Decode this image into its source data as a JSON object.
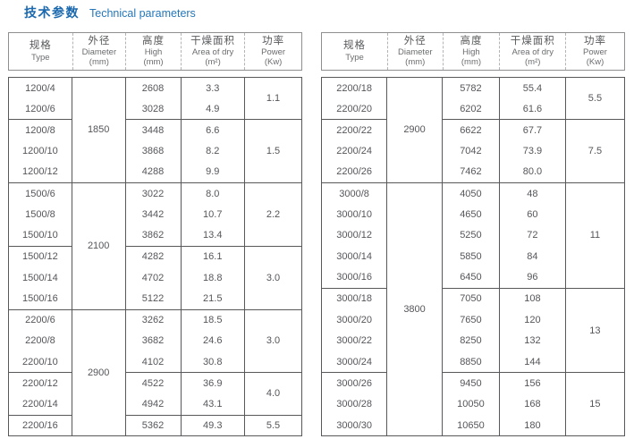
{
  "title": {
    "zh": "技术参数",
    "en": "Technical parameters"
  },
  "colors": {
    "title_blue": "#1a68ae",
    "title_blue_light": "#2577ba",
    "stripe_blue": "#cfe5f6",
    "border_dark": "#58585a",
    "text_gray": "#55565a"
  },
  "header_columns": [
    {
      "zh": "规格",
      "en": "Type",
      "unit": ""
    },
    {
      "zh": "外径",
      "en": "Diameter",
      "unit": "(mm)"
    },
    {
      "zh": "高度",
      "en": "High",
      "unit": "(mm)"
    },
    {
      "zh": "干燥面积",
      "en": "Area of dry",
      "unit": "(m²)"
    },
    {
      "zh": "功率",
      "en": "Power",
      "unit": "(Kw)"
    }
  ],
  "tables": [
    {
      "name": "left",
      "rows": [
        {
          "type": "1200/4",
          "high": "2608",
          "area": "3.3"
        },
        {
          "type": "1200/6",
          "high": "3028",
          "area": "4.9"
        },
        {
          "type": "1200/8",
          "high": "3448",
          "area": "6.6"
        },
        {
          "type": "1200/10",
          "high": "3868",
          "area": "8.2"
        },
        {
          "type": "1200/12",
          "high": "4288",
          "area": "9.9"
        },
        {
          "type": "1500/6",
          "high": "3022",
          "area": "8.0"
        },
        {
          "type": "1500/8",
          "high": "3442",
          "area": "10.7"
        },
        {
          "type": "1500/10",
          "high": "3862",
          "area": "13.4"
        },
        {
          "type": "1500/12",
          "high": "4282",
          "area": "16.1"
        },
        {
          "type": "1500/14",
          "high": "4702",
          "area": "18.8"
        },
        {
          "type": "1500/16",
          "high": "5122",
          "area": "21.5"
        },
        {
          "type": "2200/6",
          "high": "3262",
          "area": "18.5"
        },
        {
          "type": "2200/8",
          "high": "3682",
          "area": "24.6"
        },
        {
          "type": "2200/10",
          "high": "4102",
          "area": "30.8"
        },
        {
          "type": "2200/12",
          "high": "4522",
          "area": "36.9"
        },
        {
          "type": "2200/14",
          "high": "4942",
          "area": "43.1"
        },
        {
          "type": "2200/16",
          "high": "5362",
          "area": "49.3"
        }
      ],
      "diameter_groups": [
        {
          "value": "1850",
          "start": 0,
          "span": 5
        },
        {
          "value": "2100",
          "start": 5,
          "span": 6
        },
        {
          "value": "2900",
          "start": 11,
          "span": 6
        }
      ],
      "power_groups": [
        {
          "value": "1.1",
          "start": 0,
          "span": 2
        },
        {
          "value": "1.5",
          "start": 2,
          "span": 3
        },
        {
          "value": "2.2",
          "start": 5,
          "span": 3
        },
        {
          "value": "3.0",
          "start": 8,
          "span": 3
        },
        {
          "value": "3.0",
          "start": 11,
          "span": 3
        },
        {
          "value": "4.0",
          "start": 14,
          "span": 2
        },
        {
          "value": "5.5",
          "start": 16,
          "span": 1
        }
      ]
    },
    {
      "name": "right",
      "rows": [
        {
          "type": "2200/18",
          "high": "5782",
          "area": "55.4"
        },
        {
          "type": "2200/20",
          "high": "6202",
          "area": "61.6"
        },
        {
          "type": "2200/22",
          "high": "6622",
          "area": "67.7"
        },
        {
          "type": "2200/24",
          "high": "7042",
          "area": "73.9"
        },
        {
          "type": "2200/26",
          "high": "7462",
          "area": "80.0"
        },
        {
          "type": "3000/8",
          "high": "4050",
          "area": "48"
        },
        {
          "type": "3000/10",
          "high": "4650",
          "area": "60"
        },
        {
          "type": "3000/12",
          "high": "5250",
          "area": "72"
        },
        {
          "type": "3000/14",
          "high": "5850",
          "area": "84"
        },
        {
          "type": "3000/16",
          "high": "6450",
          "area": "96"
        },
        {
          "type": "3000/18",
          "high": "7050",
          "area": "108"
        },
        {
          "type": "3000/20",
          "high": "7650",
          "area": "120"
        },
        {
          "type": "3000/22",
          "high": "8250",
          "area": "132"
        },
        {
          "type": "3000/24",
          "high": "8850",
          "area": "144"
        },
        {
          "type": "3000/26",
          "high": "9450",
          "area": "156"
        },
        {
          "type": "3000/28",
          "high": "10050",
          "area": "168"
        },
        {
          "type": "3000/30",
          "high": "10650",
          "area": "180"
        }
      ],
      "diameter_groups": [
        {
          "value": "2900",
          "start": 0,
          "span": 5
        },
        {
          "value": "3800",
          "start": 5,
          "span": 12
        }
      ],
      "power_groups": [
        {
          "value": "5.5",
          "start": 0,
          "span": 2
        },
        {
          "value": "7.5",
          "start": 2,
          "span": 3
        },
        {
          "value": "11",
          "start": 5,
          "span": 5
        },
        {
          "value": "13",
          "start": 10,
          "span": 4
        },
        {
          "value": "15",
          "start": 14,
          "span": 3
        }
      ]
    }
  ]
}
